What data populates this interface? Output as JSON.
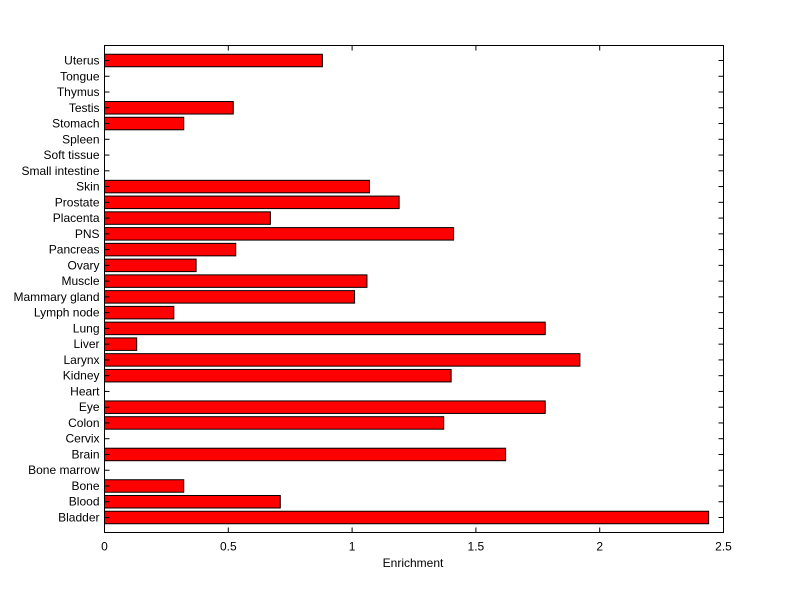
{
  "chart_data": {
    "type": "bar",
    "orientation": "horizontal",
    "xlabel": "Enrichment",
    "ylabel": "",
    "title": "",
    "xlim": [
      0,
      2.5
    ],
    "xticks": [
      0,
      0.5,
      1,
      1.5,
      2,
      2.5
    ],
    "xtick_labels": [
      "0",
      "0.5",
      "1",
      "1.5",
      "2",
      "2.5"
    ],
    "grid": false,
    "legend": "none",
    "bar_color": "#ff0000",
    "categories": [
      "Bladder",
      "Blood",
      "Bone",
      "Bone marrow",
      "Brain",
      "Cervix",
      "Colon",
      "Eye",
      "Heart",
      "Kidney",
      "Larynx",
      "Liver",
      "Lung",
      "Lymph node",
      "Mammary gland",
      "Muscle",
      "Ovary",
      "Pancreas",
      "PNS",
      "Placenta",
      "Prostate",
      "Skin",
      "Small intestine",
      "Soft tissue",
      "Spleen",
      "Stomach",
      "Testis",
      "Thymus",
      "Tongue",
      "Uterus"
    ],
    "values": [
      2.44,
      0.71,
      0.32,
      0,
      1.62,
      0,
      1.37,
      1.78,
      0,
      1.4,
      1.92,
      0.13,
      1.78,
      0.28,
      1.01,
      1.06,
      0.37,
      0.53,
      1.41,
      0.67,
      1.19,
      1.07,
      0,
      0,
      0,
      0.32,
      0.52,
      0,
      0,
      0.88
    ]
  }
}
